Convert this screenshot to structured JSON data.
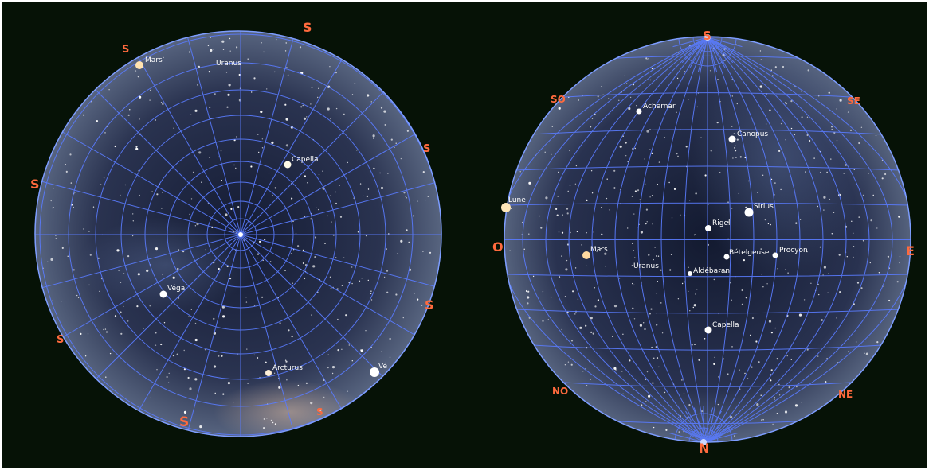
{
  "colors": {
    "background": "#061206",
    "grid": "#5a7cff",
    "rim": "#7d9dff",
    "sky_center": "#1a2340",
    "sky_edge": "#4f5d7a",
    "label": "#ffffff",
    "cardinal": "#ff6a3d"
  },
  "left_map": {
    "labels": {
      "mars": "Mars",
      "uranus": "Uranus",
      "capella": "Capella",
      "vega": "Véga",
      "arcturus": "Arcturus",
      "venus": "Vé"
    },
    "cardinals": {
      "s1": "S",
      "s2": "S",
      "s3": "S",
      "s4": "S",
      "s5": "S",
      "s6": "S",
      "s7": "S",
      "s8": "S"
    }
  },
  "right_map": {
    "labels": {
      "achernar": "Achernar",
      "canopus": "Canopus",
      "lune": "Lune",
      "sirius": "Sirius",
      "rigel": "Rigel",
      "mars": "Mars",
      "uranus": "Uranus",
      "betelgeuse": "Bételgeuse",
      "procyon": "Procyon",
      "aldebaran": "Aldébaran",
      "capella": "Capella"
    },
    "cardinals": {
      "s": "S",
      "so": "SO",
      "se": "SE",
      "o": "O",
      "e": "E",
      "no": "NO",
      "ne": "NE",
      "n": "N"
    }
  }
}
